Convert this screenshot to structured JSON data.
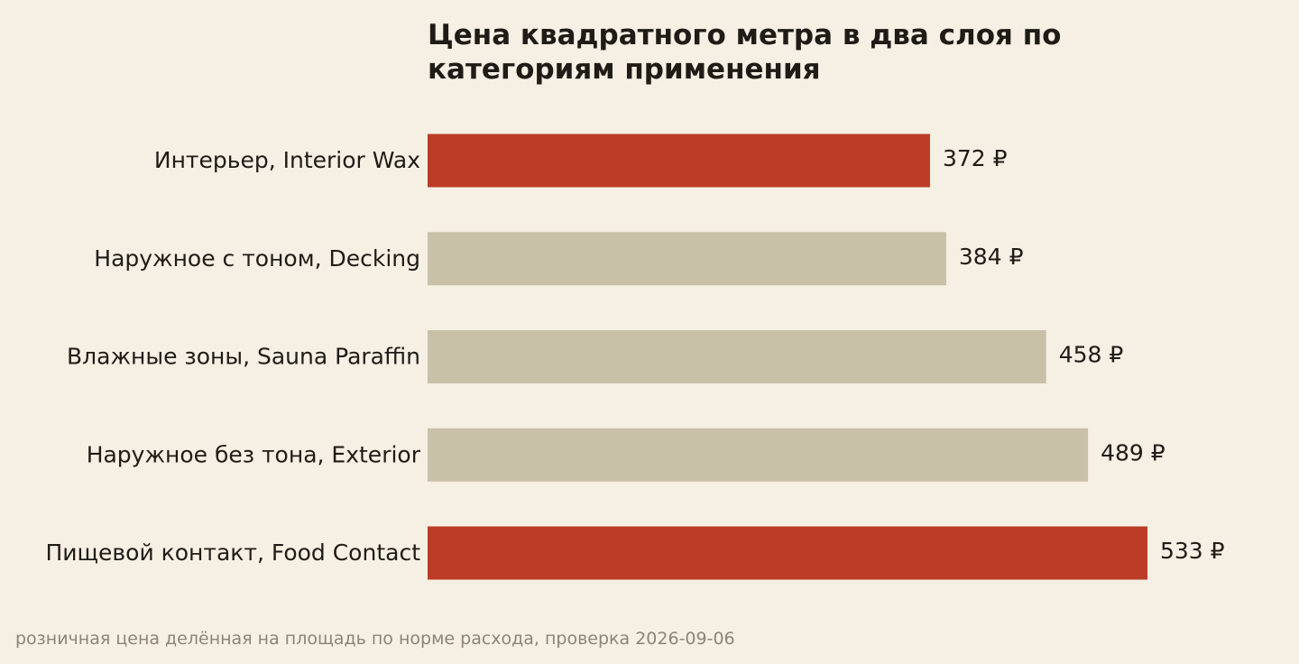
{
  "chart_data": {
    "type": "bar",
    "orientation": "horizontal",
    "title": "Цена квадратного метра в два слоя по категориям применения",
    "categories": [
      "Интерьер, Interior Wax",
      "Наружное с тоном, Decking",
      "Влажные зоны, Sauna Paraffin",
      "Наружное без тона, Exterior",
      "Пищевой контакт, Food Contact"
    ],
    "values": [
      372,
      384,
      458,
      489,
      533
    ],
    "value_labels": [
      "372 ₽",
      "384 ₽",
      "458 ₽",
      "489 ₽",
      "533 ₽"
    ],
    "highlighted": [
      true,
      false,
      false,
      false,
      true
    ],
    "colors": {
      "highlight": "#bc3c26",
      "default": "#c9c0a8",
      "background": "#f6efe3",
      "text": "#1f1c17"
    },
    "xlim": [
      0,
      533
    ],
    "grid": false
  },
  "footnote": "розничная цена делённая на площадь по норме расхода, проверка 2026-09-06"
}
